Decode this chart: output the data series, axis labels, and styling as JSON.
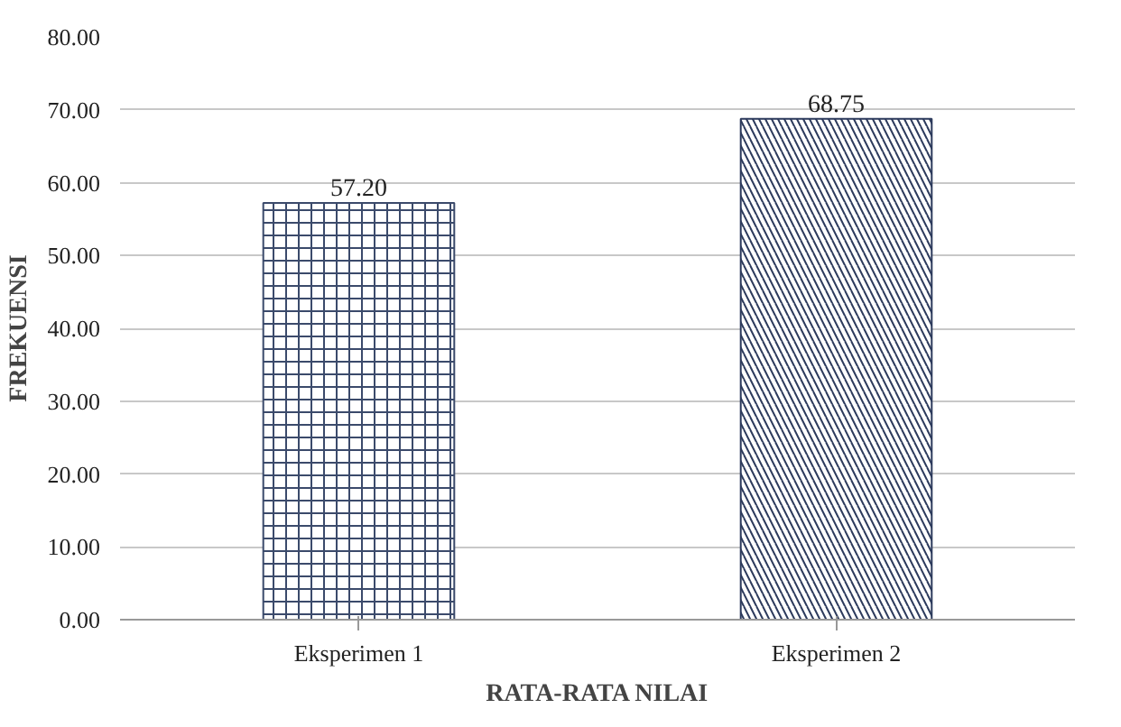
{
  "chart_data": {
    "type": "bar",
    "xlabel": "RATA-RATA NILAI",
    "ylabel": "FREKUENSI",
    "categories": [
      "Eksperimen 1",
      "Eksperimen 2"
    ],
    "values": [
      57.2,
      68.75
    ],
    "value_labels": [
      "57.20",
      "68.75"
    ],
    "colors": [
      "#3b4a6b",
      "#2c3a5c"
    ],
    "ylim": [
      0,
      80
    ],
    "yticks": [
      {
        "value": 0,
        "label": "0.00"
      },
      {
        "value": 10,
        "label": "10.00"
      },
      {
        "value": 20,
        "label": "20.00"
      },
      {
        "value": 30,
        "label": "30.00"
      },
      {
        "value": 40,
        "label": "40.00"
      },
      {
        "value": 50,
        "label": "50.00"
      },
      {
        "value": 60,
        "label": "60.00"
      },
      {
        "value": 70,
        "label": "70.00"
      },
      {
        "value": 80,
        "label": "80.00"
      }
    ],
    "grid": "y"
  }
}
